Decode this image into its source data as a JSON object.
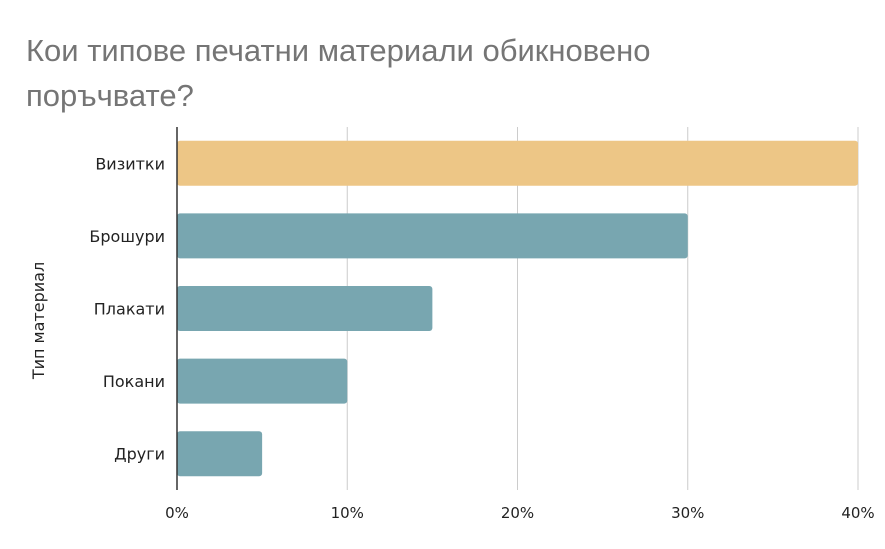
{
  "chart_data": {
    "type": "bar",
    "orientation": "horizontal",
    "title": "Кои типове печатни материали обикновено поръчвате?",
    "ylabel": "Тип материал",
    "xlabel": "",
    "categories": [
      "Визитки",
      "Брошури",
      "Плакати",
      "Покани",
      "Други"
    ],
    "values": [
      40,
      30,
      15,
      10,
      5
    ],
    "xlim": [
      0,
      40
    ],
    "xticks": [
      0,
      10,
      20,
      30,
      40
    ],
    "tick_labels": [
      "0%",
      "10%",
      "20%",
      "30%",
      "40%"
    ],
    "grid": true,
    "colors": {
      "highlight": "#EDC686",
      "default": "#78A6B0",
      "grid": "#cccccc",
      "axis": "#333333"
    },
    "highlight_index": 0
  }
}
